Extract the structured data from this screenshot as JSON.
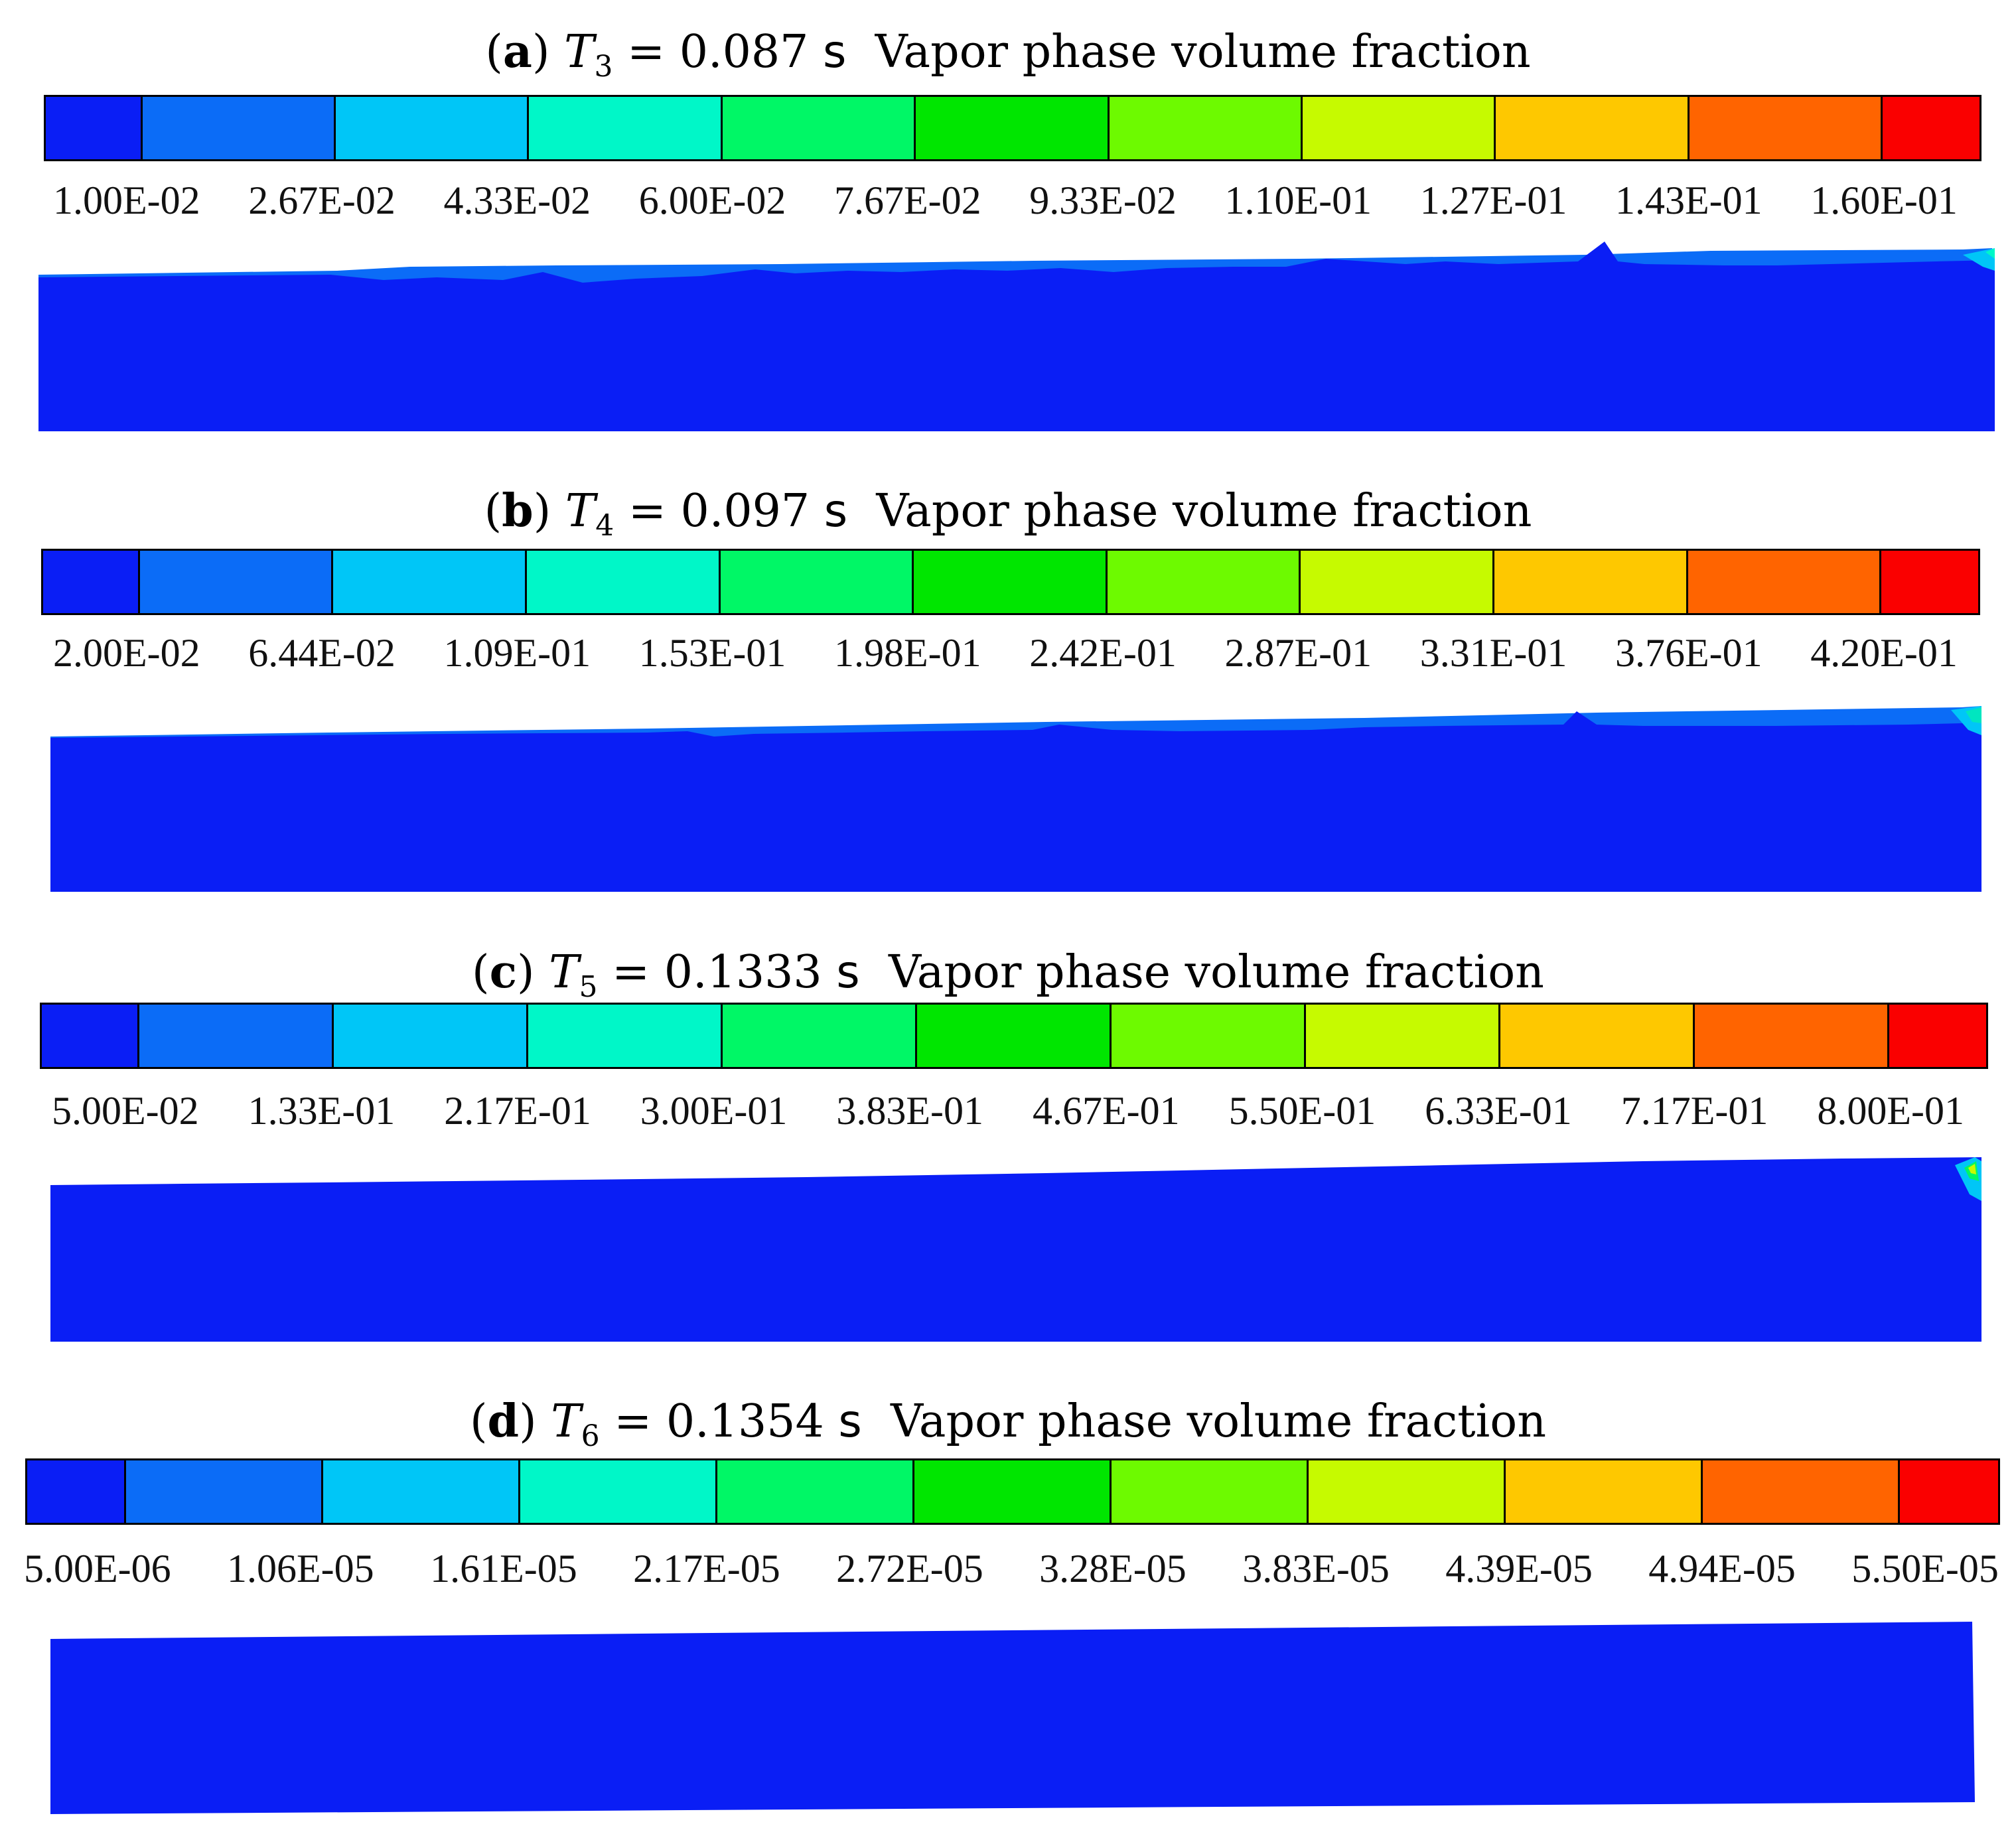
{
  "colors": {
    "levels": [
      "#0a1ef5",
      "#0b6cf7",
      "#00c6f7",
      "#00f7c8",
      "#00f766",
      "#00e600",
      "#6dfa00",
      "#c6fa00",
      "#fec800",
      "#ff6400",
      "#fa0000"
    ],
    "liquid": "#0a1ef5",
    "interface": "#0b6cf7",
    "hotspot_a": "#00f7c8",
    "hotspot_b": "#00e6c0",
    "hotspot_c": "#c6fa00"
  },
  "panels": [
    {
      "tag": "a",
      "symbol": "T",
      "subscript": "3",
      "equals": "=",
      "time": "0.087",
      "unit": "s",
      "caption": "Vapor phase volume fraction",
      "ticks": [
        "1.00E-02",
        "2.67E-02",
        "4.33E-02",
        "6.00E-02",
        "7.67E-02",
        "9.33E-02",
        "1.10E-01",
        "1.27E-01",
        "1.43E-01",
        "1.60E-01"
      ]
    },
    {
      "tag": "b",
      "symbol": "T",
      "subscript": "4",
      "equals": "=",
      "time": "0.097",
      "unit": "s",
      "caption": "Vapor phase volume fraction",
      "ticks": [
        "2.00E-02",
        "6.44E-02",
        "1.09E-01",
        "1.53E-01",
        "1.98E-01",
        "2.42E-01",
        "2.87E-01",
        "3.31E-01",
        "3.76E-01",
        "4.20E-01"
      ]
    },
    {
      "tag": "c",
      "symbol": "T",
      "subscript": "5",
      "equals": "=",
      "time": "0.1333",
      "unit": "s",
      "caption": "Vapor phase volume fraction",
      "ticks": [
        "5.00E-02",
        "1.33E-01",
        "2.17E-01",
        "3.00E-01",
        "3.83E-01",
        "4.67E-01",
        "5.50E-01",
        "6.33E-01",
        "7.17E-01",
        "8.00E-01"
      ]
    },
    {
      "tag": "d",
      "symbol": "T",
      "subscript": "6",
      "equals": "=",
      "time": "0.1354",
      "unit": "s",
      "caption": "Vapor phase volume fraction",
      "ticks": [
        "5.00E-06",
        "1.06E-05",
        "1.61E-05",
        "2.17E-05",
        "2.72E-05",
        "3.28E-05",
        "3.83E-05",
        "4.39E-05",
        "4.94E-05",
        "5.50E-05"
      ]
    }
  ]
}
